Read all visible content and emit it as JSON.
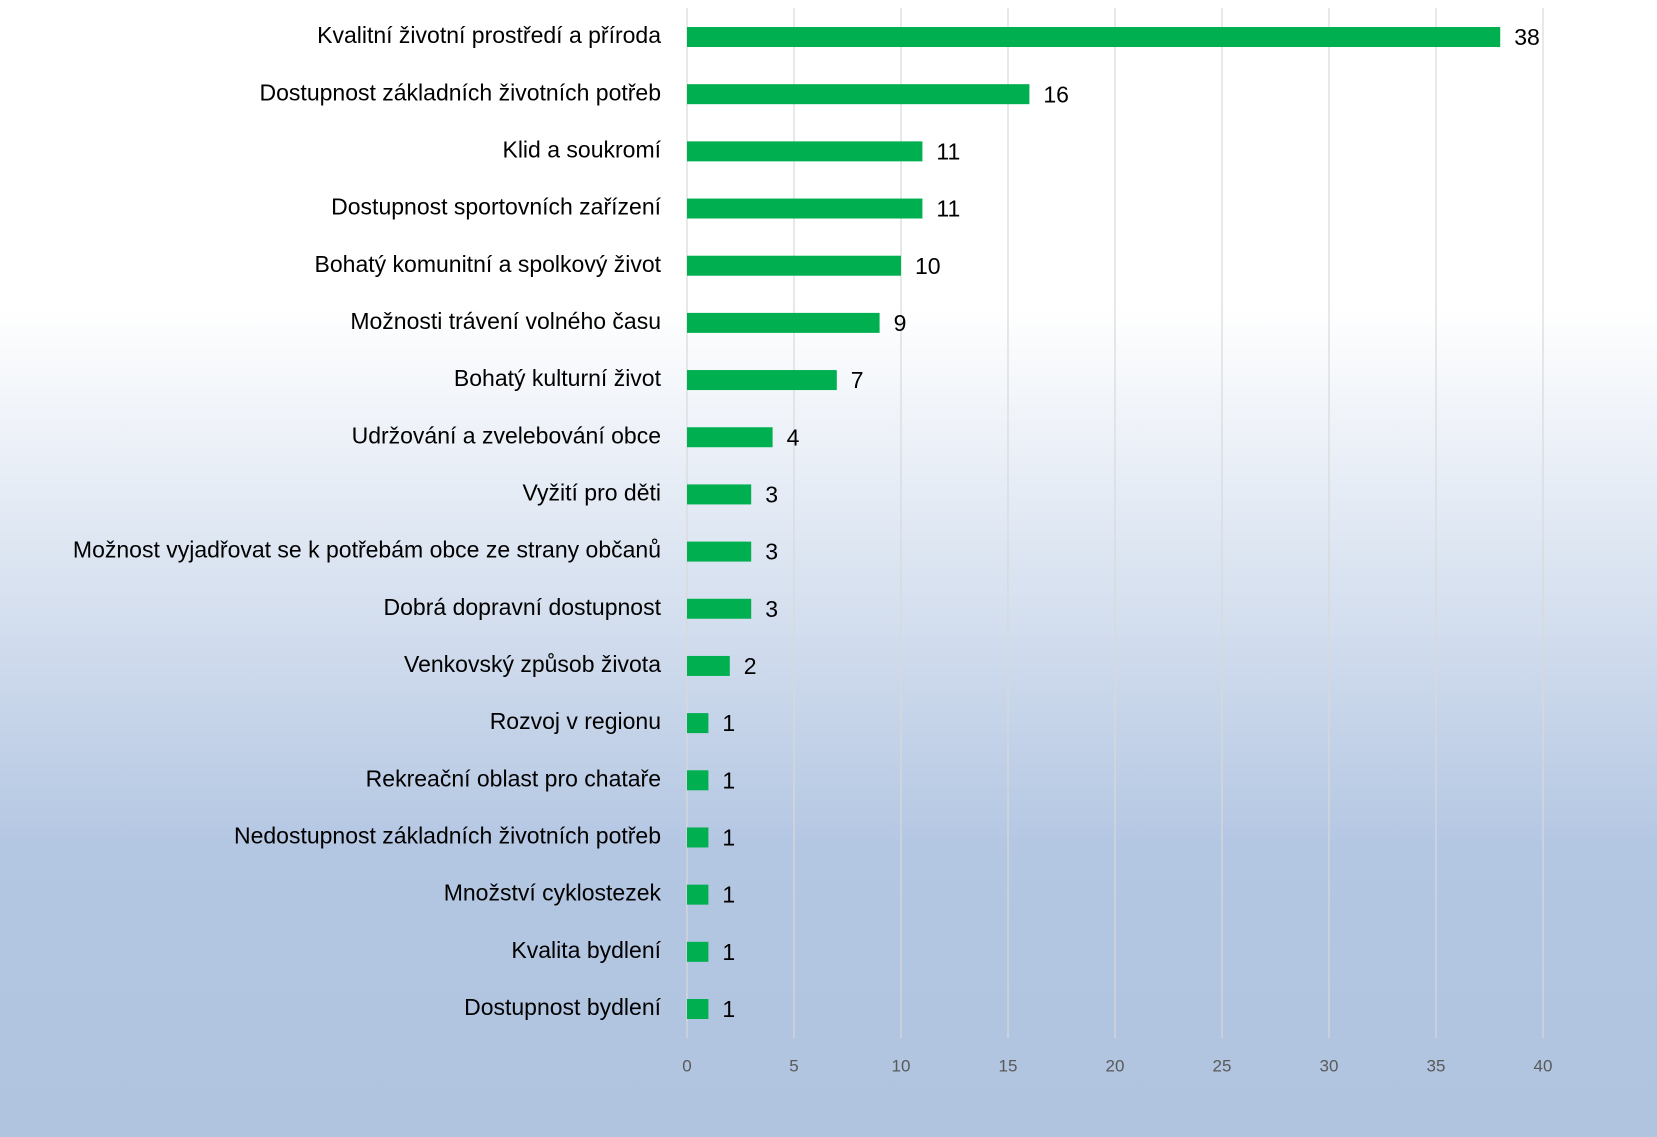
{
  "chart_data": {
    "type": "bar",
    "orientation": "horizontal",
    "categories": [
      "Kvalitní životní prostředí a příroda",
      "Dostupnost základních životních potřeb",
      "Klid a soukromí",
      "Dostupnost sportovních zařízení",
      "Bohatý komunitní a spolkový život",
      "Možnosti trávení volného času",
      "Bohatý kulturní život",
      "Udržování a zvelebování obce",
      "Vyžití pro děti",
      "Možnost vyjadřovat se k potřebám obce ze strany občanů",
      "Dobrá dopravní dostupnost",
      "Venkovský způsob života",
      "Rozvoj v regionu",
      "Rekreační oblast pro chataře",
      "Nedostupnost základních životních potřeb",
      "Množství cyklostezek",
      "Kvalita bydlení",
      "Dostupnost bydlení"
    ],
    "values": [
      38,
      16,
      11,
      11,
      10,
      9,
      7,
      4,
      3,
      3,
      3,
      2,
      1,
      1,
      1,
      1,
      1,
      1
    ],
    "color": "#00b050",
    "xlim": [
      0,
      40
    ],
    "xticks": [
      0,
      5,
      10,
      15,
      20,
      25,
      30,
      35,
      40
    ],
    "grid": true
  }
}
